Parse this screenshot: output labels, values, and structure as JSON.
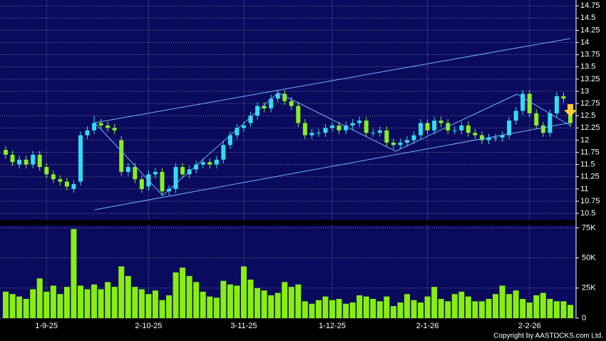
{
  "chart_data": {
    "type": "candlestick",
    "categories": [
      null,
      null,
      null,
      null,
      null,
      null,
      "1-9-25",
      null,
      null,
      null,
      null,
      null,
      null,
      null,
      null,
      null,
      null,
      null,
      null,
      null,
      null,
      "2-10-25",
      null,
      null,
      null,
      null,
      null,
      null,
      null,
      null,
      null,
      null,
      null,
      null,
      null,
      "3-11-25",
      null,
      null,
      null,
      null,
      null,
      null,
      null,
      null,
      null,
      null,
      null,
      null,
      "1-12-25",
      null,
      null,
      null,
      null,
      null,
      null,
      null,
      null,
      null,
      null,
      null,
      null,
      null,
      "2-1-26",
      null,
      null,
      null,
      null,
      null,
      null,
      null,
      null,
      null,
      null,
      null,
      null,
      null,
      null,
      "2-2-26",
      null,
      null,
      null,
      null,
      null,
      null
    ],
    "open": [
      11.8,
      11.7,
      11.5,
      11.6,
      11.5,
      11.7,
      11.45,
      11.3,
      11.2,
      11.15,
      11.0,
      11.15,
      12.1,
      12.2,
      12.35,
      12.3,
      12.25,
      12.0,
      11.35,
      11.45,
      11.2,
      11.05,
      11.3,
      11.35,
      10.95,
      11.0,
      11.45,
      11.3,
      11.4,
      11.5,
      11.55,
      11.5,
      11.6,
      11.9,
      12.1,
      12.25,
      12.35,
      12.5,
      12.7,
      12.65,
      12.85,
      12.95,
      12.8,
      12.7,
      12.35,
      12.1,
      12.15,
      12.15,
      12.25,
      12.3,
      12.2,
      12.3,
      12.35,
      12.4,
      12.15,
      12.15,
      12.2,
      11.95,
      11.9,
      11.95,
      12.0,
      12.1,
      12.35,
      12.2,
      12.4,
      12.35,
      12.2,
      12.2,
      12.3,
      12.15,
      12.1,
      12.0,
      12.05,
      12.05,
      12.1,
      12.4,
      12.6,
      12.95,
      12.55,
      12.3,
      12.15,
      12.55,
      12.9,
      12.6
    ],
    "high": [
      11.88,
      11.78,
      11.68,
      11.68,
      11.78,
      11.78,
      11.53,
      11.38,
      11.28,
      11.23,
      11.18,
      12.18,
      12.28,
      12.5,
      12.43,
      12.38,
      12.33,
      12.08,
      11.53,
      11.53,
      11.28,
      11.38,
      11.43,
      11.43,
      11.08,
      11.53,
      11.53,
      11.48,
      11.58,
      11.63,
      11.63,
      11.68,
      11.98,
      12.18,
      12.33,
      12.38,
      12.58,
      12.78,
      12.78,
      12.93,
      13.03,
      13.03,
      12.88,
      12.78,
      12.43,
      12.23,
      12.23,
      12.33,
      12.38,
      12.38,
      12.38,
      12.43,
      12.48,
      12.48,
      12.23,
      12.28,
      12.28,
      12.03,
      12.03,
      12.08,
      12.18,
      12.43,
      12.43,
      12.48,
      12.48,
      12.43,
      12.28,
      12.38,
      12.38,
      12.23,
      12.18,
      12.13,
      12.13,
      12.18,
      12.48,
      12.68,
      13.03,
      13.03,
      12.63,
      12.38,
      12.63,
      12.98,
      12.98,
      12.68
    ],
    "low": [
      11.62,
      11.47,
      11.42,
      11.42,
      11.42,
      11.37,
      11.22,
      11.12,
      11.07,
      10.97,
      10.92,
      11.07,
      12.02,
      12.12,
      12.22,
      12.17,
      12.12,
      11.27,
      11.27,
      11.12,
      10.92,
      10.97,
      11.22,
      10.87,
      10.87,
      10.92,
      11.22,
      11.22,
      11.32,
      11.42,
      11.42,
      11.42,
      11.52,
      11.82,
      12.02,
      12.17,
      12.27,
      12.42,
      12.57,
      12.57,
      12.77,
      12.72,
      12.62,
      12.27,
      12.02,
      12.02,
      12.07,
      12.07,
      12.17,
      12.12,
      12.12,
      12.22,
      12.27,
      12.07,
      12.07,
      12.07,
      11.87,
      11.82,
      11.82,
      11.87,
      11.92,
      12.02,
      12.12,
      12.12,
      12.27,
      12.12,
      12.12,
      12.12,
      12.07,
      12.02,
      11.92,
      11.92,
      11.97,
      11.97,
      12.02,
      12.32,
      12.52,
      12.47,
      12.22,
      12.07,
      12.07,
      12.47,
      12.77,
      12.27
    ],
    "close": [
      11.7,
      11.55,
      11.6,
      11.5,
      11.7,
      11.45,
      11.3,
      11.2,
      11.15,
      11.05,
      11.1,
      12.1,
      12.2,
      12.35,
      12.3,
      12.25,
      12.2,
      11.35,
      11.45,
      11.2,
      11.0,
      11.3,
      11.35,
      10.95,
      11.0,
      11.45,
      11.3,
      11.4,
      11.5,
      11.55,
      11.5,
      11.6,
      11.9,
      12.1,
      12.25,
      12.3,
      12.5,
      12.7,
      12.65,
      12.85,
      12.95,
      12.8,
      12.7,
      12.35,
      12.1,
      12.15,
      12.15,
      12.25,
      12.3,
      12.2,
      12.3,
      12.35,
      12.4,
      12.15,
      12.15,
      12.2,
      11.95,
      11.9,
      11.95,
      12.0,
      12.1,
      12.35,
      12.2,
      12.4,
      12.35,
      12.2,
      12.2,
      12.3,
      12.15,
      12.1,
      12.0,
      12.05,
      12.05,
      12.1,
      12.4,
      12.6,
      12.95,
      12.55,
      12.3,
      12.15,
      12.55,
      12.9,
      12.85,
      12.35
    ],
    "up_color": "#33ddf0",
    "down_color": "#88ee22",
    "ylim": [
      10.37,
      14.87
    ],
    "yticks": [
      10.5,
      10.75,
      11,
      11.25,
      11.5,
      11.75,
      12,
      12.25,
      12.5,
      12.75,
      13,
      13.25,
      13.5,
      13.75,
      14,
      14.25,
      14.5,
      14.75
    ],
    "grid": true,
    "volume": {
      "values": [
        22000,
        20000,
        18000,
        16000,
        24000,
        33000,
        22000,
        27000,
        20000,
        26000,
        74000,
        27000,
        24000,
        28000,
        24000,
        30000,
        26000,
        43000,
        35000,
        26000,
        24000,
        20000,
        23000,
        15000,
        19000,
        38000,
        42000,
        35000,
        30000,
        22000,
        18000,
        17000,
        31000,
        28000,
        27000,
        43000,
        32000,
        25000,
        23000,
        19000,
        21000,
        30000,
        26000,
        28000,
        14000,
        12000,
        15000,
        18000,
        15000,
        16000,
        12000,
        13000,
        19000,
        18000,
        16000,
        14000,
        18000,
        10000,
        13000,
        20000,
        15000,
        13000,
        18000,
        26000,
        16000,
        14000,
        20000,
        22000,
        18000,
        14000,
        14000,
        16000,
        20000,
        27000,
        20000,
        23000,
        16000,
        13000,
        19000,
        21000,
        16000,
        14000,
        14000,
        11000
      ],
      "color": "#88ee11",
      "ylim": [
        0,
        77000
      ],
      "yticks": [
        0,
        {
          "value": 25000,
          "label": "25K"
        },
        {
          "value": 50000,
          "label": "50K"
        },
        {
          "value": 75000,
          "label": "75K"
        }
      ]
    }
  },
  "copyright": "Copyright by AASTOCKS.com Ltd."
}
